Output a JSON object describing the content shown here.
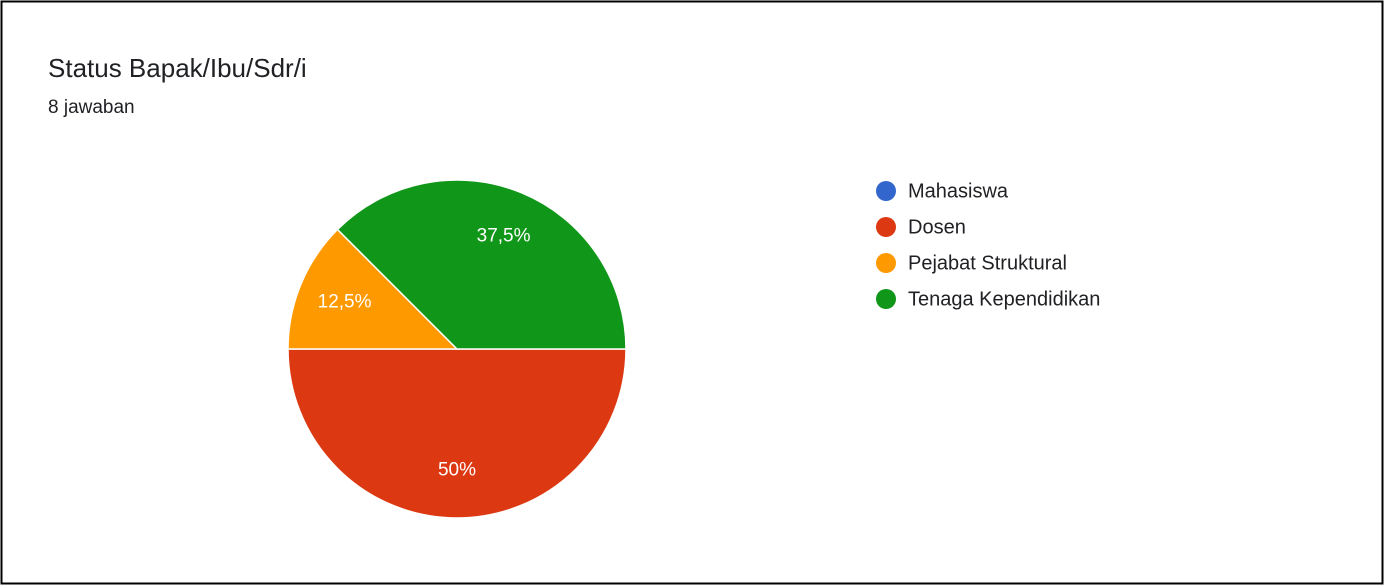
{
  "chart_data": {
    "type": "pie",
    "title": "Status Bapak/Ibu/Sdr/i",
    "subtitle": "8 jawaban",
    "categories": [
      "Mahasiswa",
      "Dosen",
      "Pejabat Struktural",
      "Tenaga Kependidikan"
    ],
    "values": [
      0,
      50,
      12.5,
      37.5
    ],
    "value_labels": [
      null,
      "50%",
      "12,5%",
      "37,5%"
    ],
    "colors": [
      "#3366cc",
      "#dc3912",
      "#ff9900",
      "#109618"
    ],
    "legend": "right"
  }
}
